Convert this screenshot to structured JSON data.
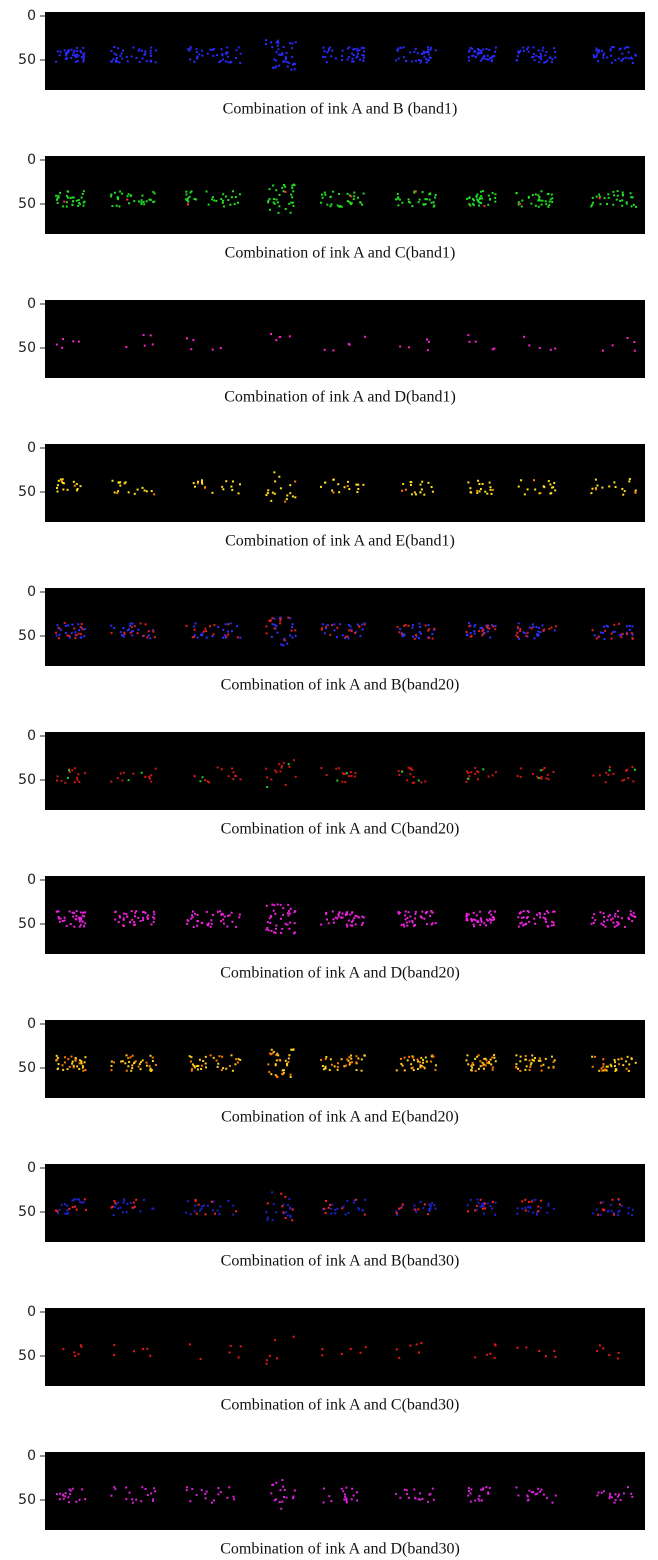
{
  "panels": [
    {
      "caption": "Combination of ink A and B (band1)",
      "yticks": [
        0,
        50
      ]
    },
    {
      "caption": "Combination of ink A and C(band1)",
      "yticks": [
        0,
        50
      ]
    },
    {
      "caption": "Combination of ink A and D(band1)",
      "yticks": [
        0,
        50
      ]
    },
    {
      "caption": "Combination of ink A and E(band1)",
      "yticks": [
        0,
        50
      ]
    },
    {
      "caption": "Combination of ink A and B(band20)",
      "yticks": [
        0,
        50
      ]
    },
    {
      "caption": "Combination of ink A and C(band20)",
      "yticks": [
        0,
        50
      ]
    },
    {
      "caption": "Combination of ink A and D(band20)",
      "yticks": [
        0,
        50
      ]
    },
    {
      "caption": "Combination of ink A and E(band20)",
      "yticks": [
        0,
        50
      ]
    },
    {
      "caption": "Combination of ink A and B(band30)",
      "yticks": [
        0,
        50
      ]
    },
    {
      "caption": "Combination of ink A and C(band30)",
      "yticks": [
        0,
        50
      ]
    },
    {
      "caption": "Combination of ink A and D(band30)",
      "yticks": [
        0,
        50
      ]
    }
  ]
}
